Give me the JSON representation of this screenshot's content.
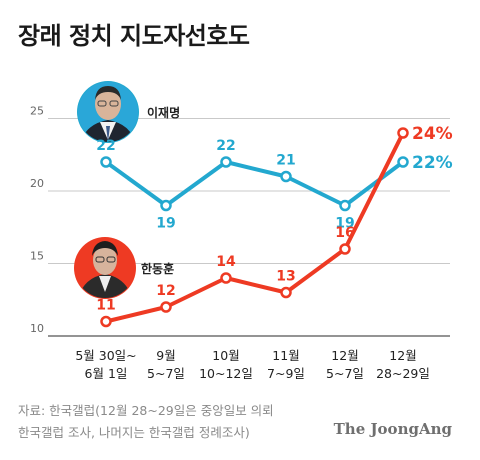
{
  "title": "장래 정치 지도자선호도",
  "chart_data": {
    "type": "line",
    "categories": [
      "5월 30일~\n6월 1일",
      "9월\n5~7일",
      "10월\n10~12일",
      "11월\n7~9일",
      "12월\n5~7일",
      "12월\n28~29일"
    ],
    "series": [
      {
        "name": "이재명",
        "values": [
          22,
          19,
          22,
          21,
          19,
          22
        ],
        "color": "#23a8cf",
        "final_label": "22%"
      },
      {
        "name": "한동훈",
        "values": [
          11,
          12,
          14,
          13,
          16,
          24
        ],
        "color": "#ee3a23",
        "final_label": "24%"
      }
    ],
    "yticks": [
      10,
      15,
      20,
      25
    ],
    "ylim": [
      10,
      26
    ],
    "grid": true
  },
  "source_lines": [
    "자료: 한국갤럽(12월 28~29일은 중앙일보 의뢰",
    "한국갤럽 조사, 나머지는 한국갤럽 정례조사)"
  ],
  "brand": "The JoongAng"
}
